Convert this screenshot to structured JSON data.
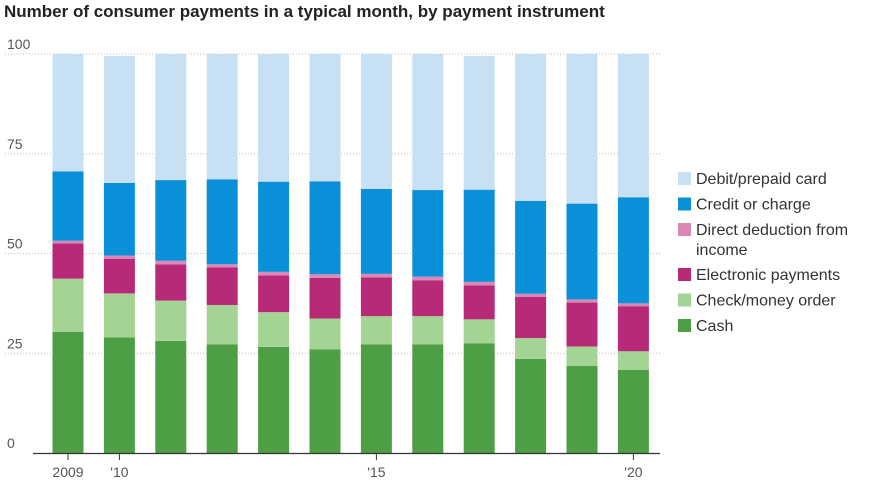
{
  "chart_data": {
    "type": "bar",
    "stacked": true,
    "title": "Number of consumer payments in a typical month, by payment instrument",
    "xlabel": "",
    "ylabel": "",
    "ylim": [
      0,
      100
    ],
    "yticks": [
      "100",
      "75",
      "50",
      "25",
      "0"
    ],
    "ytick_values": [
      100,
      75,
      50,
      25,
      0
    ],
    "categories": [
      2009,
      2010,
      2011,
      2012,
      2013,
      2014,
      2015,
      2016,
      2017,
      2018,
      2019,
      2020
    ],
    "xtick_labels": [
      {
        "label": "2009",
        "category": 2009
      },
      {
        "label": "'10",
        "category": 2010
      },
      {
        "label": "'15",
        "category": 2015
      },
      {
        "label": "'20",
        "category": 2020
      }
    ],
    "grid": true,
    "legend_position": "right",
    "series": [
      {
        "name": "Cash",
        "color": "#4e9e45",
        "values": [
          30.4,
          29.0,
          28.1,
          27.2,
          26.6,
          26.0,
          27.2,
          27.2,
          27.5,
          23.6,
          21.8,
          20.8
        ]
      },
      {
        "name": "Check/money order",
        "color": "#a3d494",
        "values": [
          13.3,
          11.0,
          10.1,
          9.9,
          8.7,
          7.7,
          7.1,
          7.1,
          6.0,
          5.2,
          4.9,
          4.7
        ]
      },
      {
        "name": "Electronic payments",
        "color": "#b62a77",
        "values": [
          8.8,
          8.7,
          9.1,
          9.4,
          9.2,
          10.2,
          9.7,
          9.0,
          8.5,
          10.3,
          11.0,
          11.3
        ]
      },
      {
        "name": "Direct deduction from income",
        "color": "#db88b5",
        "values": [
          0.7,
          0.8,
          0.9,
          0.8,
          0.9,
          0.9,
          0.9,
          0.9,
          0.9,
          0.8,
          0.8,
          0.7
        ]
      },
      {
        "name": "Credit or charge",
        "color": "#0a90d8",
        "values": [
          17.4,
          18.2,
          20.2,
          21.3,
          22.6,
          23.3,
          21.3,
          21.7,
          23.1,
          23.3,
          24.0,
          26.6
        ]
      },
      {
        "name": "Debit/prepaid card",
        "color": "#c8e0f4",
        "values": [
          29.4,
          31.8,
          31.6,
          31.4,
          32.0,
          31.9,
          33.8,
          34.1,
          33.5,
          36.8,
          37.5,
          35.9
        ]
      }
    ],
    "legend": [
      {
        "lines": [
          "Debit/prepaid card"
        ],
        "series": 5
      },
      {
        "lines": [
          "Credit or charge"
        ],
        "series": 4
      },
      {
        "lines": [
          "Direct deduction from",
          "income"
        ],
        "series": 3
      },
      {
        "lines": [
          "Electronic payments"
        ],
        "series": 2
      },
      {
        "lines": [
          "Check/money order"
        ],
        "series": 1
      },
      {
        "lines": [
          "Cash"
        ],
        "series": 0
      }
    ]
  }
}
